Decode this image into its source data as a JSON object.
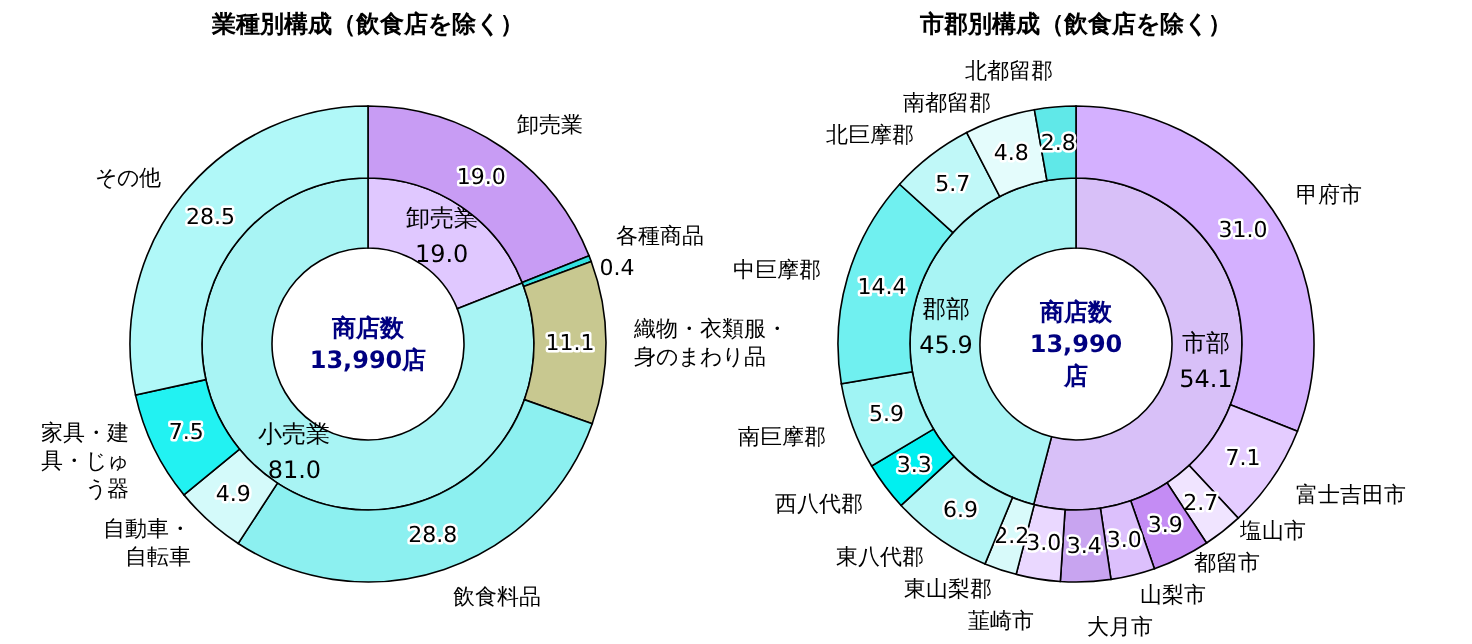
{
  "chart_data": [
    {
      "type": "donut",
      "title": "業種別構成（飲食店を除く）",
      "annotations": [
        "商店数\n13,990店"
      ],
      "legend": false,
      "categories": [
        "卸売業",
        "小売業"
      ],
      "values": [
        19.0,
        81.0
      ],
      "value_labels": [
        "19.0",
        "81.0"
      ],
      "colors": [
        "#e0c8ff",
        "#a8f4f4"
      ]
    },
    {
      "type": "donut",
      "legend": false,
      "categories": [
        "卸売業",
        "各種商品",
        "織物・衣類服・身のまわり品",
        "飲食料品",
        "自動車・自転車",
        "家具・建具・じゅう器",
        "その他"
      ],
      "values": [
        19.0,
        0.4,
        11.1,
        28.8,
        4.9,
        7.5,
        28.5
      ],
      "value_labels": [
        "19.0",
        "0.4",
        "11.1",
        "28.8",
        "4.9",
        "7.5",
        "28.5"
      ],
      "colors": [
        "#c89cf4",
        "#33e0e0",
        "#c8c890",
        "#8cf0f0",
        "#d4fafa",
        "#22f2f2",
        "#b0f8f8"
      ]
    },
    {
      "type": "donut",
      "title": "市郡別構成（飲食店を除く）",
      "annotations": [
        "商店数\n13,990\n店"
      ],
      "legend": false,
      "categories": [
        "市部",
        "郡部"
      ],
      "values": [
        54.1,
        45.9
      ],
      "value_labels": [
        "54.1",
        "45.9"
      ],
      "colors": [
        "#d8c0f8",
        "#a8f4f4"
      ]
    },
    {
      "type": "donut",
      "legend": false,
      "categories": [
        "甲府市",
        "富士吉田市",
        "塩山市",
        "都留市",
        "山梨市",
        "大月市",
        "韮崎市",
        "東山梨郡",
        "東八代郡",
        "西八代郡",
        "南巨摩郡",
        "中巨摩郡",
        "北巨摩郡",
        "南都留郡",
        "北都留郡"
      ],
      "values": [
        31.0,
        7.1,
        2.7,
        3.9,
        3.0,
        3.4,
        3.0,
        2.2,
        6.9,
        3.3,
        5.9,
        14.4,
        5.7,
        4.8,
        2.8
      ],
      "value_labels": [
        "31.0",
        "7.1",
        "2.7",
        "3.9",
        "3.0",
        "3.4",
        "3.0",
        "2.2",
        "6.9",
        "3.3",
        "5.9",
        "14.4",
        "5.7",
        "4.8",
        "2.8"
      ],
      "colors": [
        "#d4b0ff",
        "#e4ccff",
        "#f0e4ff",
        "#c48cf4",
        "#dcc0fc",
        "#c8a4f0",
        "#ead8ff",
        "#d8fafa",
        "#b4f6f6",
        "#00f0f0",
        "#a0f4f4",
        "#70f0f0",
        "#c0f8f8",
        "#e4fcfc",
        "#60e8e8"
      ]
    }
  ]
}
